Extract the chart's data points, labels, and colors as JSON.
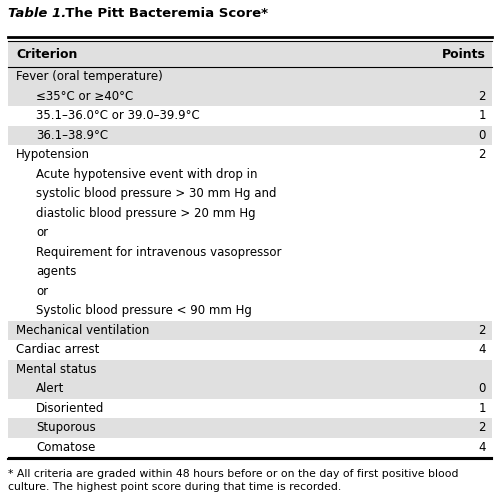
{
  "title_italic": "Table 1.",
  "title_bold": "  The Pitt Bacteremia Score*",
  "col_criterion": "Criterion",
  "col_points": "Points",
  "bg_color": "#ffffff",
  "stripe_color": "#e0e0e0",
  "footnote_line1": "* All criteria are graded within 48 hours before or on the day of first positive blood",
  "footnote_line2": "culture. The highest point score during that time is recorded.",
  "rows": [
    {
      "text": "Fever (oral temperature)",
      "indent": 0,
      "bold": false,
      "points": "",
      "stripe": true
    },
    {
      "text": "≤35°C or ≥40°C",
      "indent": 1,
      "bold": false,
      "points": "2",
      "stripe": true
    },
    {
      "text": "35.1–36.0°C or 39.0–39.9°C",
      "indent": 1,
      "bold": false,
      "points": "1",
      "stripe": false
    },
    {
      "text": "36.1–38.9°C",
      "indent": 1,
      "bold": false,
      "points": "0",
      "stripe": true
    },
    {
      "text": "Hypotension",
      "indent": 0,
      "bold": false,
      "points": "2",
      "stripe": false
    },
    {
      "text": "Acute hypotensive event with drop in",
      "indent": 1,
      "bold": false,
      "points": "",
      "stripe": false
    },
    {
      "text": "systolic blood pressure > 30 mm Hg and",
      "indent": 1,
      "bold": false,
      "points": "",
      "stripe": false
    },
    {
      "text": "diastolic blood pressure > 20 mm Hg",
      "indent": 1,
      "bold": false,
      "points": "",
      "stripe": false
    },
    {
      "text": "or",
      "indent": 1,
      "bold": false,
      "points": "",
      "stripe": false
    },
    {
      "text": "Requirement for intravenous vasopressor",
      "indent": 1,
      "bold": false,
      "points": "",
      "stripe": false
    },
    {
      "text": "agents",
      "indent": 1,
      "bold": false,
      "points": "",
      "stripe": false
    },
    {
      "text": "or",
      "indent": 1,
      "bold": false,
      "points": "",
      "stripe": false
    },
    {
      "text": "Systolic blood pressure < 90 mm Hg",
      "indent": 1,
      "bold": false,
      "points": "",
      "stripe": false
    },
    {
      "text": "Mechanical ventilation",
      "indent": 0,
      "bold": false,
      "points": "2",
      "stripe": true
    },
    {
      "text": "Cardiac arrest",
      "indent": 0,
      "bold": false,
      "points": "4",
      "stripe": false
    },
    {
      "text": "Mental status",
      "indent": 0,
      "bold": false,
      "points": "",
      "stripe": true
    },
    {
      "text": "Alert",
      "indent": 1,
      "bold": false,
      "points": "0",
      "stripe": true
    },
    {
      "text": "Disoriented",
      "indent": 1,
      "bold": false,
      "points": "1",
      "stripe": false
    },
    {
      "text": "Stuporous",
      "indent": 1,
      "bold": false,
      "points": "2",
      "stripe": true
    },
    {
      "text": "Comatose",
      "indent": 1,
      "bold": false,
      "points": "4",
      "stripe": false
    }
  ]
}
